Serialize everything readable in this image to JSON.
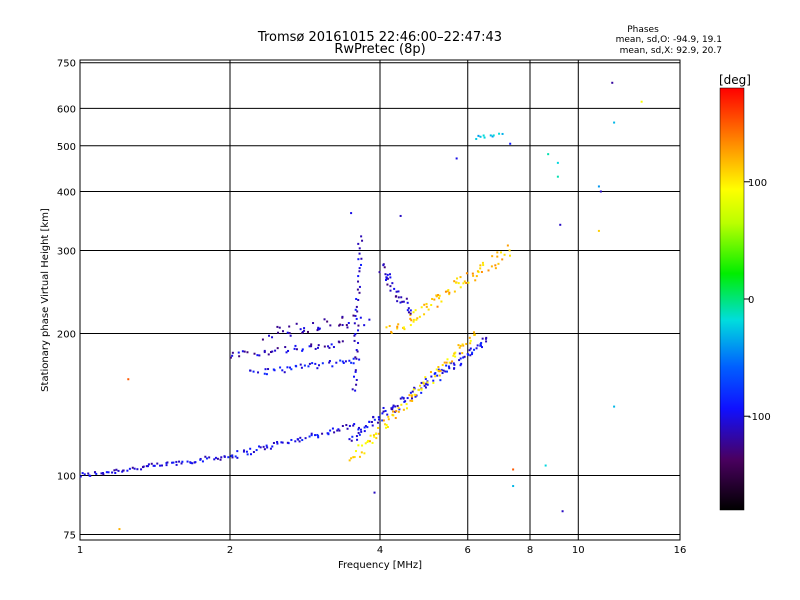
{
  "chart_data": {
    "type": "scatter",
    "title": "Tromsø 20161015 22:46:00–22:47:43",
    "subtitle": "RwPretec (8p)",
    "xlabel": "Frequency [MHz]",
    "ylabel": "Stationary phase Virtual Height [km]",
    "x_scale": "log",
    "y_scale": "log",
    "xlim": [
      1,
      16
    ],
    "ylim": [
      73,
      760
    ],
    "x_ticks": [
      1,
      2,
      4,
      6,
      8,
      10,
      16
    ],
    "x_grid": [
      2,
      4,
      6,
      8,
      10
    ],
    "y_ticks": [
      75,
      100,
      200,
      300,
      400,
      500,
      600,
      750
    ],
    "grid": true,
    "stats": {
      "heading": "Phases",
      "line1": "mean, sd,O: -94.9, 19.1",
      "line2": "mean, sd,X:  92.9, 20.7"
    },
    "colorbar": {
      "label": "[deg]",
      "range": [
        -180,
        180
      ],
      "ticks": [
        100,
        0,
        -100
      ],
      "placement": "right"
    },
    "traces": [
      {
        "desc": "low O trace",
        "x0": 1.0,
        "x1": 2.0,
        "y0": 100,
        "y1": 110,
        "phase": -105,
        "n": 70,
        "jitter": 0.012
      },
      {
        "desc": "O trace mid",
        "x0": 2.0,
        "x1": 3.6,
        "y0": 110,
        "y1": 128,
        "phase": -100,
        "n": 60,
        "jitter": 0.015
      },
      {
        "desc": "O trace curve",
        "x0": 3.5,
        "x1": 6.6,
        "y0": 120,
        "y1": 195,
        "phase": -100,
        "n": 110,
        "jitter": 0.02
      },
      {
        "desc": "X trace curve",
        "x0": 3.5,
        "x1": 6.2,
        "y0": 108,
        "y1": 200,
        "phase": 110,
        "n": 90,
        "jitter": 0.02
      },
      {
        "desc": "X upper trace",
        "x0": 4.2,
        "x1": 7.2,
        "y0": 200,
        "y1": 300,
        "phase": 115,
        "n": 80,
        "jitter": 0.03
      },
      {
        "desc": "F layer O band",
        "x0": 2.0,
        "x1": 3.4,
        "y0": 180,
        "y1": 190,
        "phase": -110,
        "n": 40,
        "jitter": 0.015
      },
      {
        "desc": "F layer O band 2",
        "x0": 2.2,
        "x1": 3.6,
        "y0": 165,
        "y1": 175,
        "phase": -95,
        "n": 40,
        "jitter": 0.015
      },
      {
        "desc": "upper O cluster",
        "x0": 2.4,
        "x1": 3.7,
        "y0": 200,
        "y1": 215,
        "phase": -115,
        "n": 40,
        "jitter": 0.03
      },
      {
        "desc": "vertical O spike",
        "x0": 3.55,
        "x1": 3.65,
        "y0": 150,
        "y1": 320,
        "phase": -105,
        "n": 40,
        "jitter": 0.01
      },
      {
        "desc": "diagonal O",
        "x0": 4.0,
        "x1": 4.6,
        "y0": 280,
        "y1": 220,
        "phase": -110,
        "n": 35,
        "jitter": 0.02
      },
      {
        "desc": "high cluster",
        "x0": 6.2,
        "x1": 7.0,
        "y0": 520,
        "y1": 530,
        "phase": -30,
        "n": 10,
        "jitter": 0.01
      }
    ],
    "scatter_points": [
      {
        "x": 1.2,
        "y": 77,
        "phase": 120
      },
      {
        "x": 1.25,
        "y": 160,
        "phase": 150
      },
      {
        "x": 3.9,
        "y": 92,
        "phase": -110
      },
      {
        "x": 5.7,
        "y": 470,
        "phase": -100
      },
      {
        "x": 7.3,
        "y": 505,
        "phase": -90
      },
      {
        "x": 8.7,
        "y": 480,
        "phase": -10
      },
      {
        "x": 9.1,
        "y": 460,
        "phase": -20
      },
      {
        "x": 9.1,
        "y": 430,
        "phase": -10
      },
      {
        "x": 11.0,
        "y": 410,
        "phase": -40
      },
      {
        "x": 11.1,
        "y": 400,
        "phase": -110
      },
      {
        "x": 11.7,
        "y": 680,
        "phase": -120
      },
      {
        "x": 11.8,
        "y": 560,
        "phase": -30
      },
      {
        "x": 13.4,
        "y": 620,
        "phase": 90
      },
      {
        "x": 11.0,
        "y": 330,
        "phase": 110
      },
      {
        "x": 9.2,
        "y": 340,
        "phase": -110
      },
      {
        "x": 11.8,
        "y": 140,
        "phase": -30
      },
      {
        "x": 9.3,
        "y": 84,
        "phase": -110
      },
      {
        "x": 7.4,
        "y": 95,
        "phase": -30
      },
      {
        "x": 7.4,
        "y": 103,
        "phase": 150
      },
      {
        "x": 4.4,
        "y": 355,
        "phase": -110
      },
      {
        "x": 3.5,
        "y": 360,
        "phase": -100
      },
      {
        "x": 8.6,
        "y": 105,
        "phase": -20
      }
    ]
  }
}
